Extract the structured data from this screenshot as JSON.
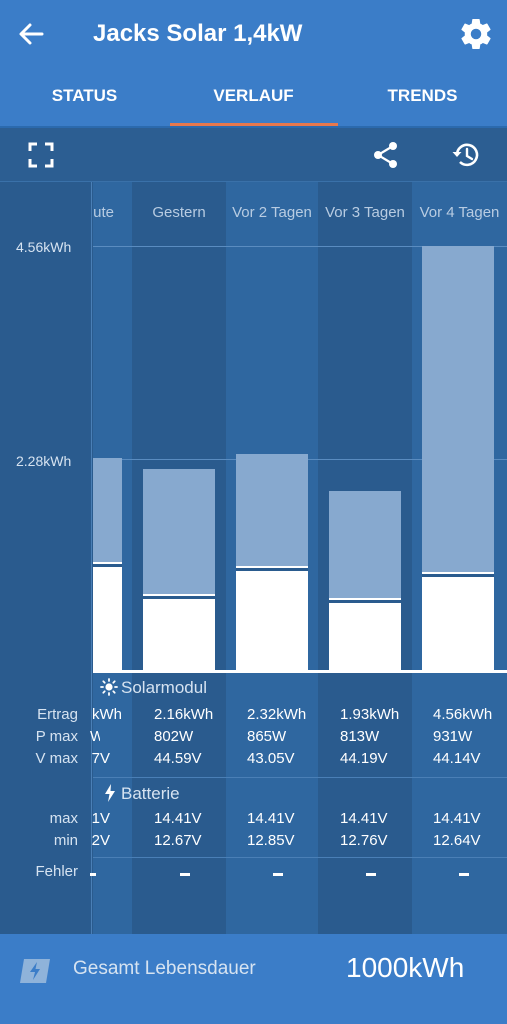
{
  "app": {
    "title": "Jacks Solar 1,4kW",
    "icons": {
      "back": "arrow-left-icon",
      "settings": "gear-icon"
    }
  },
  "tabs": [
    {
      "label": "STATUS",
      "active": false
    },
    {
      "label": "VERLAUF",
      "active": true
    },
    {
      "label": "TRENDS",
      "active": false
    }
  ],
  "toolbar": {
    "icons": [
      "fullscreen-icon",
      "share-icon",
      "history-icon"
    ]
  },
  "accent_color": "#e8784c",
  "chart": {
    "y_ticks": [
      "4.56kWh",
      "2.28kWh"
    ],
    "y_max": 4.56,
    "columns": [
      {
        "header": "ute",
        "value": 2.28,
        "upper_fraction": 0.49
      },
      {
        "header": "Gestern",
        "value": 2.16,
        "upper_fraction": 0.62
      },
      {
        "header": "Vor 2 Tagen",
        "value": 2.32,
        "upper_fraction": 0.52
      },
      {
        "header": "Vor 3 Tagen",
        "value": 1.93,
        "upper_fraction": 0.6
      },
      {
        "header": "Vor 4 Tagen",
        "value": 4.56,
        "upper_fraction": 0.77
      }
    ]
  },
  "solar": {
    "section_title": "Solarmodul",
    "row_labels": {
      "ertrag": "Ertrag",
      "pmax": "P max",
      "vmax": "V max"
    },
    "ertrag": [
      "kWh",
      "2.16kWh",
      "2.32kWh",
      "1.93kWh",
      "4.56kWh"
    ],
    "pmax": [
      "W",
      "802W",
      "865W",
      "813W",
      "931W"
    ],
    "vmax": [
      "7V",
      "44.59V",
      "43.05V",
      "44.19V",
      "44.14V"
    ]
  },
  "battery": {
    "section_title": "Batterie",
    "row_labels": {
      "max": "max",
      "min": "min"
    },
    "max": [
      "1V",
      "14.41V",
      "14.41V",
      "14.41V",
      "14.41V"
    ],
    "min": [
      "2V",
      "12.67V",
      "12.85V",
      "12.76V",
      "12.64V"
    ]
  },
  "errors": {
    "label": "Fehler"
  },
  "footer": {
    "label": "Gesamt Lebensdauer",
    "value": "1000kWh",
    "icon": "battery-charge-icon"
  }
}
